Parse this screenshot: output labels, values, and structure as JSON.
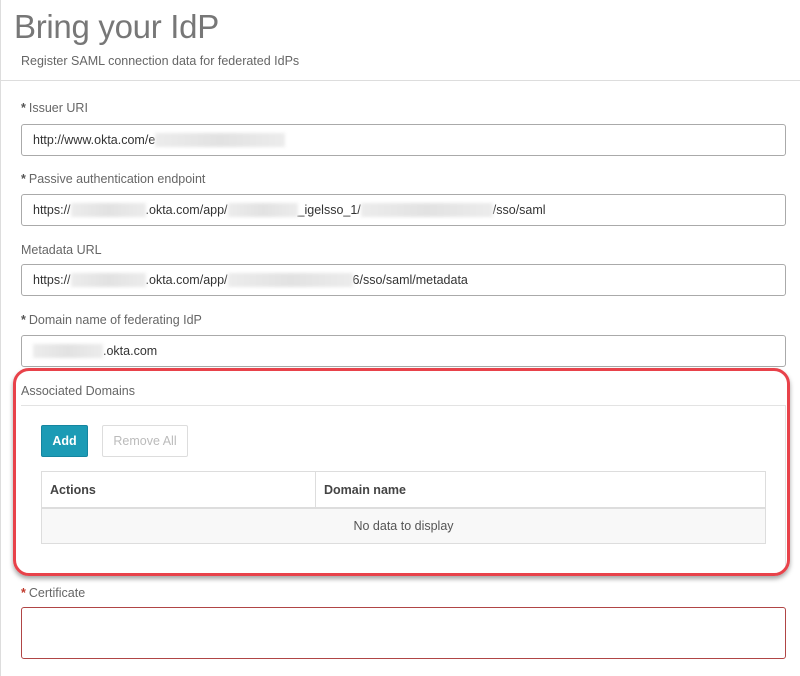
{
  "header": {
    "title": "Bring your IdP",
    "subtitle": "Register SAML connection data for federated IdPs"
  },
  "fields": {
    "issuer": {
      "label": "Issuer URI",
      "required": true,
      "value_parts": [
        "http://www.okta.com/e"
      ]
    },
    "passive": {
      "label": "Passive authentication endpoint",
      "required": true,
      "value_parts": [
        "https://",
        ".okta.com/app/",
        "_igelsso_1/",
        "/sso/saml"
      ]
    },
    "metadata": {
      "label": "Metadata URL",
      "required": false,
      "value_parts": [
        "https://",
        ".okta.com/app/",
        "6/sso/saml/metadata"
      ]
    },
    "domain": {
      "label": "Domain name of federating IdP",
      "required": true,
      "value_parts": [
        ".okta.com"
      ]
    },
    "certificate": {
      "label": "Certificate",
      "required": true,
      "value": ""
    }
  },
  "associated_domains": {
    "label": "Associated Domains",
    "add_label": "Add",
    "remove_all_label": "Remove All",
    "columns": [
      "Actions",
      "Domain name"
    ],
    "empty_text": "No data to display"
  },
  "required_marker": "*",
  "colors": {
    "accent": "#1c9bb5",
    "highlight": "#e8424a",
    "error_border": "#b04545"
  }
}
